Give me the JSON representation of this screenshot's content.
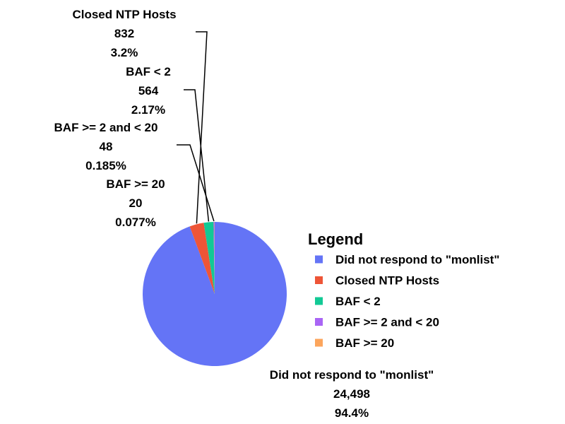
{
  "chart_data": {
    "type": "pie",
    "title": "",
    "legend": {
      "title": "Legend",
      "placement": "right"
    },
    "slices": [
      {
        "label": "Did not respond to \"monlist\"",
        "value": 24498,
        "value_label": "24,498",
        "percent_label": "94.4%",
        "color": "#6474f6"
      },
      {
        "label": "Closed NTP Hosts",
        "value": 832,
        "value_label": "832",
        "percent_label": "3.2%",
        "color": "#ee5537"
      },
      {
        "label": "BAF < 2",
        "value": 564,
        "value_label": "564",
        "percent_label": "2.17%",
        "color": "#12c995"
      },
      {
        "label": "BAF >= 2 and < 20",
        "value": 48,
        "value_label": "48",
        "percent_label": "0.185%",
        "color": "#a965f5"
      },
      {
        "label": "BAF >= 20",
        "value": 20,
        "value_label": "20",
        "percent_label": "0.077%",
        "color": "#fca55c"
      }
    ]
  }
}
